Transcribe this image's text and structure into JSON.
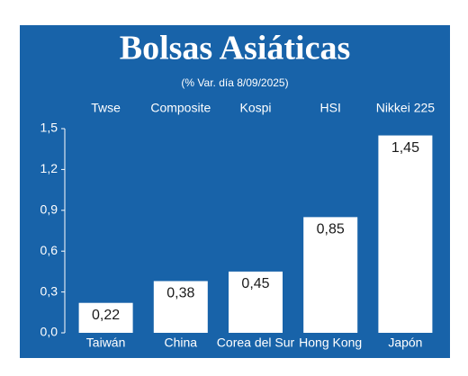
{
  "chart_data": {
    "type": "bar",
    "title": "Bolsas Asiáticas",
    "subtitle": "(% Var. día  8/09/2025)",
    "categories": [
      "Taiwán",
      "China",
      "Corea del Sur",
      "Hong Kong",
      "Japón"
    ],
    "indices": [
      "Twse",
      "Composite",
      "Kospi",
      "HSI",
      "Nikkei 225"
    ],
    "values": [
      0.22,
      0.38,
      0.45,
      0.85,
      1.45
    ],
    "value_labels": [
      "0,22",
      "0,38",
      "0,45",
      "0,85",
      "1,45"
    ],
    "color": "#ffffff",
    "background": "#1863a9",
    "ylim": [
      0,
      1.5
    ],
    "yticks": [
      {
        "value": 0,
        "label": "0,0"
      },
      {
        "value": 0.3,
        "label": "0,3"
      },
      {
        "value": 0.6,
        "label": "0,6"
      },
      {
        "value": 0.9,
        "label": "0,9"
      },
      {
        "value": 1.2,
        "label": "1,2"
      },
      {
        "value": 1.5,
        "label": "1,5"
      }
    ]
  }
}
